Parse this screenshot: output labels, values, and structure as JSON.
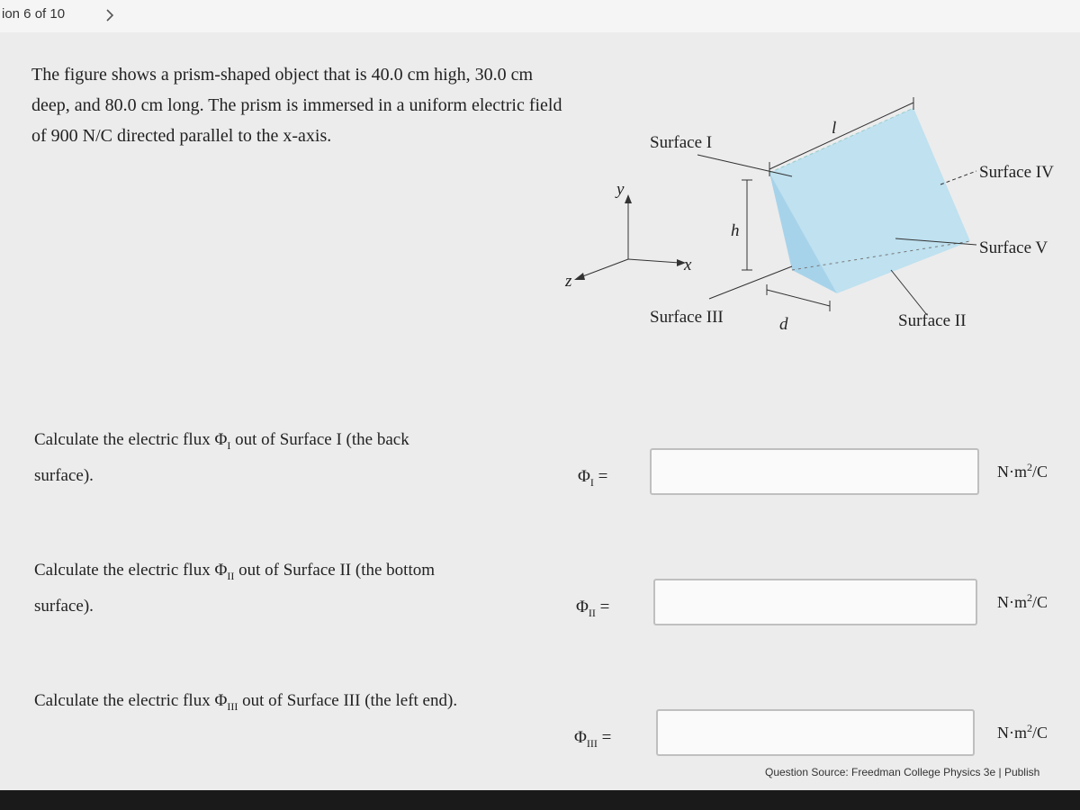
{
  "header": {
    "progress": "ion 6 of 10"
  },
  "problem": {
    "text": "The figure shows a prism-shaped object that is 40.0 cm high, 30.0 cm deep, and 80.0 cm long. The prism is immersed in a uniform electric field of 900 N/C directed parallel to the x-axis."
  },
  "figure": {
    "labels": {
      "surface_1": "Surface I",
      "surface_4": "Surface IV",
      "surface_5": "Surface V",
      "surface_3": "Surface III",
      "surface_2": "Surface II",
      "h": "h",
      "l": "l",
      "d": "d"
    },
    "axes": {
      "x": "x",
      "y": "y",
      "z": "z"
    }
  },
  "questions": [
    {
      "before": "Calculate the electric flux Φ",
      "sub": "I",
      "after": " out of Surface I (the back surface).",
      "symbol": "Φ",
      "equals": "=",
      "unit": {
        "base": "N·m",
        "exp": "2",
        "tail": "/C"
      }
    },
    {
      "before": "Calculate the electric flux Φ",
      "sub": "II",
      "after": " out of Surface II (the bottom surface).",
      "symbol": "Φ",
      "equals": "=",
      "unit": {
        "base": "N·m",
        "exp": "2",
        "tail": "/C"
      }
    },
    {
      "before": "Calculate the electric flux Φ",
      "sub": "III",
      "after": " out of Surface III (the left end).",
      "symbol": "Φ",
      "equals": "=",
      "unit": {
        "base": "N·m",
        "exp": "2",
        "tail": "/C"
      }
    }
  ],
  "footer": {
    "source": "Question Source: Freedman College Physics 3e",
    "separator": "|",
    "publisher": "Publish"
  }
}
